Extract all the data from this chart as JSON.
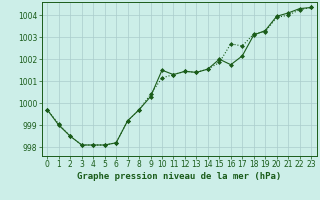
{
  "title": "Graphe pression niveau de la mer (hPa)",
  "background_color": "#cceee8",
  "grid_color": "#aacccc",
  "line_color": "#1a5c1a",
  "xlim": [
    -0.5,
    23.5
  ],
  "ylim": [
    997.6,
    1004.6
  ],
  "yticks": [
    998,
    999,
    1000,
    1001,
    1002,
    1003,
    1004
  ],
  "xticks": [
    0,
    1,
    2,
    3,
    4,
    5,
    6,
    7,
    8,
    9,
    10,
    11,
    12,
    13,
    14,
    15,
    16,
    17,
    18,
    19,
    20,
    21,
    22,
    23
  ],
  "series1_x": [
    0,
    1,
    2,
    3,
    4,
    5,
    6,
    7,
    8,
    9,
    10,
    11,
    12,
    13,
    14,
    15,
    16,
    17,
    18,
    19,
    20,
    21,
    22,
    23
  ],
  "series1_y": [
    999.7,
    999.0,
    998.5,
    998.1,
    998.1,
    998.1,
    998.2,
    999.2,
    999.7,
    1000.3,
    1001.5,
    1001.3,
    1001.45,
    1001.4,
    1001.55,
    1002.0,
    1001.75,
    1002.15,
    1003.1,
    1003.3,
    1003.95,
    1004.1,
    1004.3,
    1004.35
  ],
  "series2_x": [
    0,
    1,
    2,
    3,
    4,
    5,
    6,
    7,
    8,
    9,
    10,
    11,
    12,
    13,
    14,
    15,
    16,
    17,
    18,
    19,
    20,
    21,
    22,
    23
  ],
  "series2_y": [
    999.7,
    999.05,
    998.5,
    998.1,
    998.1,
    998.1,
    998.2,
    999.2,
    999.7,
    1000.4,
    1001.15,
    1001.3,
    1001.45,
    1001.4,
    1001.55,
    1001.85,
    1002.7,
    1002.6,
    1003.15,
    1003.25,
    1003.9,
    1004.0,
    1004.25,
    1004.35
  ],
  "ylabel_fontsize": 5.5,
  "xlabel_fontsize": 6.5,
  "tick_fontsize": 5.5
}
